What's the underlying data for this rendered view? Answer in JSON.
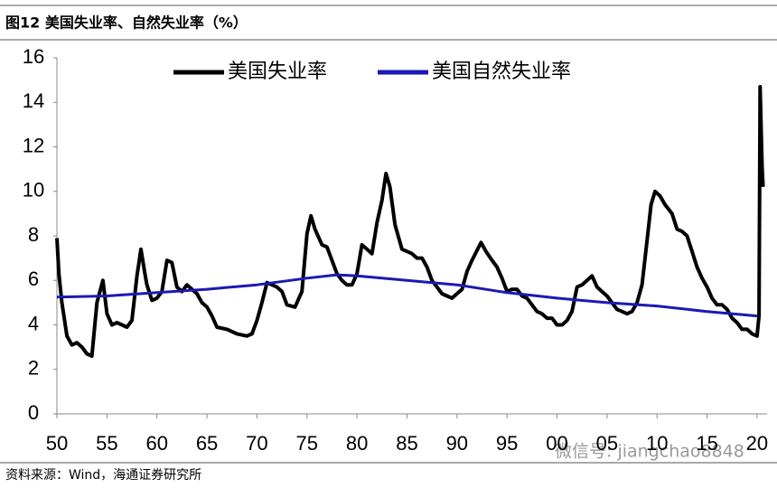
{
  "chart_data": {
    "type": "line",
    "title": "图12 美国失业率、自然失业率（%）",
    "source": "资料来源：Wind，海通证券研究所",
    "watermark": "微信号: jiangchao8848",
    "xlim": [
      1950,
      2021
    ],
    "ylim": [
      0,
      16
    ],
    "yticks": [
      0,
      2,
      4,
      6,
      8,
      10,
      12,
      14,
      16
    ],
    "xticks": [
      {
        "value": 1950,
        "label": "50"
      },
      {
        "value": 1955,
        "label": "55"
      },
      {
        "value": 1960,
        "label": "60"
      },
      {
        "value": 1965,
        "label": "65"
      },
      {
        "value": 1970,
        "label": "70"
      },
      {
        "value": 1975,
        "label": "75"
      },
      {
        "value": 1980,
        "label": "80"
      },
      {
        "value": 1985,
        "label": "85"
      },
      {
        "value": 1990,
        "label": "90"
      },
      {
        "value": 1995,
        "label": "95"
      },
      {
        "value": 2000,
        "label": "00"
      },
      {
        "value": 2005,
        "label": "05"
      },
      {
        "value": 2010,
        "label": "10"
      },
      {
        "value": 2015,
        "label": "15"
      },
      {
        "value": 2020,
        "label": "20"
      }
    ],
    "grid": false,
    "legend": "top",
    "series": [
      {
        "name": "美国失业率",
        "color": "#000000",
        "x": [
          1950,
          1950.2,
          1950.5,
          1951,
          1951.5,
          1952,
          1952.5,
          1953,
          1953.5,
          1954,
          1954.6,
          1955,
          1955.5,
          1956,
          1956.5,
          1957,
          1957.5,
          1958,
          1958.4,
          1958.8,
          1959,
          1959.5,
          1960,
          1960.5,
          1961,
          1961.5,
          1962,
          1962.5,
          1963,
          1963.5,
          1964,
          1964.5,
          1965,
          1965.5,
          1966,
          1967,
          1968,
          1969,
          1969.5,
          1970,
          1970.5,
          1971,
          1972,
          1972.5,
          1973,
          1973.8,
          1974.5,
          1975,
          1975.4,
          1975.8,
          1976.5,
          1977,
          1977.5,
          1978,
          1978.5,
          1979,
          1979.5,
          1980,
          1980.5,
          1981,
          1981.5,
          1982,
          1982.5,
          1982.9,
          1983.3,
          1983.8,
          1984.5,
          1985,
          1985.5,
          1986,
          1986.5,
          1987,
          1987.5,
          1988,
          1988.5,
          1989,
          1989.5,
          1990,
          1990.5,
          1991,
          1991.5,
          1992.4,
          1992.9,
          1993.5,
          1994,
          1994.5,
          1995,
          1995.5,
          1996,
          1996.5,
          1997,
          1997.5,
          1998,
          1998.5,
          1999,
          1999.5,
          2000,
          2000.5,
          2001,
          2001.5,
          2002,
          2002.5,
          2003.5,
          2004,
          2004.5,
          2005,
          2005.5,
          2006,
          2006.5,
          2007,
          2007.5,
          2008,
          2008.5,
          2009,
          2009.4,
          2009.8,
          2010.3,
          2010.8,
          2011.5,
          2012,
          2012.5,
          2013,
          2013.5,
          2014,
          2014.5,
          2015,
          2015.5,
          2016,
          2016.5,
          2017,
          2017.5,
          2018,
          2018.5,
          2019,
          2019.5,
          2020,
          2020.2,
          2020.3,
          2020.5,
          2020.6
        ],
        "values": [
          7.9,
          6.3,
          5.0,
          3.5,
          3.1,
          3.2,
          3.0,
          2.7,
          2.6,
          5.0,
          6.0,
          4.5,
          4.0,
          4.1,
          4.0,
          3.9,
          4.2,
          6.2,
          7.4,
          6.3,
          5.8,
          5.1,
          5.2,
          5.5,
          6.9,
          6.8,
          5.7,
          5.5,
          5.8,
          5.6,
          5.4,
          5.0,
          4.8,
          4.4,
          3.9,
          3.8,
          3.6,
          3.5,
          3.6,
          4.2,
          5.0,
          5.9,
          5.7,
          5.5,
          4.9,
          4.8,
          5.5,
          8.1,
          8.9,
          8.3,
          7.6,
          7.5,
          6.9,
          6.3,
          6.0,
          5.8,
          5.8,
          6.3,
          7.6,
          7.4,
          7.2,
          8.6,
          9.6,
          10.8,
          10.2,
          8.5,
          7.4,
          7.3,
          7.2,
          7.0,
          7.0,
          6.6,
          6.0,
          5.7,
          5.4,
          5.3,
          5.2,
          5.4,
          5.6,
          6.4,
          6.9,
          7.7,
          7.3,
          6.9,
          6.6,
          6.1,
          5.5,
          5.6,
          5.6,
          5.3,
          5.2,
          4.9,
          4.6,
          4.5,
          4.3,
          4.3,
          4.0,
          4.0,
          4.2,
          4.6,
          5.7,
          5.8,
          6.2,
          5.7,
          5.5,
          5.3,
          5.0,
          4.7,
          4.6,
          4.5,
          4.6,
          5.0,
          5.8,
          7.8,
          9.4,
          10.0,
          9.8,
          9.4,
          9.0,
          8.3,
          8.2,
          8.0,
          7.3,
          6.6,
          6.1,
          5.7,
          5.2,
          4.9,
          4.9,
          4.7,
          4.3,
          4.1,
          3.8,
          3.8,
          3.6,
          3.5,
          4.4,
          14.7,
          11.1,
          10.2
        ]
      },
      {
        "name": "美国自然失业率",
        "color": "#1a1ab4",
        "x": [
          1950,
          1955,
          1960,
          1965,
          1970,
          1975,
          1978,
          1980,
          1985,
          1990,
          1995,
          2000,
          2005,
          2010,
          2015,
          2020
        ],
        "values": [
          5.25,
          5.3,
          5.45,
          5.6,
          5.8,
          6.1,
          6.25,
          6.2,
          6.0,
          5.8,
          5.45,
          5.2,
          5.0,
          4.85,
          4.6,
          4.4
        ]
      }
    ]
  }
}
